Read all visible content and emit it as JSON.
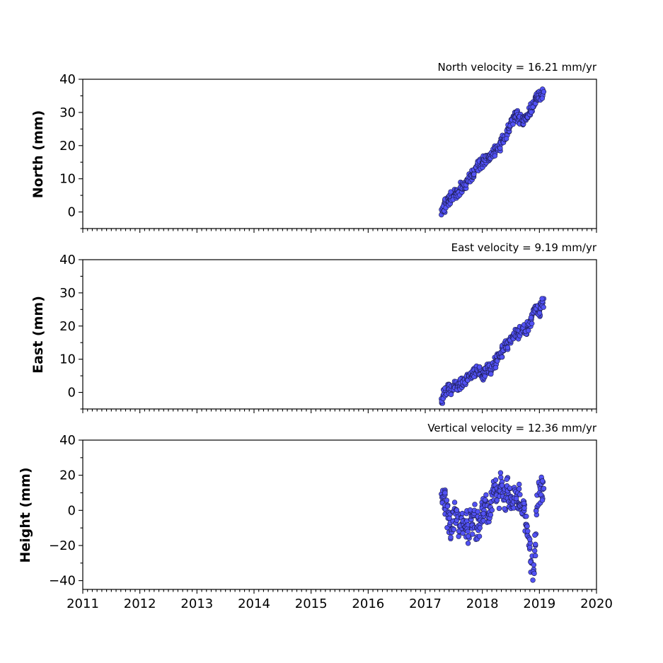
{
  "colors": {
    "marker": "#5252f5",
    "marker_edge": "#1a1a4a",
    "axis": "#000000"
  },
  "chart_data": [
    {
      "type": "scatter",
      "title": "North velocity = 16.21 mm/yr",
      "ylabel": "North (mm)",
      "xlim": [
        2011,
        2020
      ],
      "ylim": [
        -5,
        40
      ],
      "yticks": [
        0,
        10,
        20,
        30,
        40
      ],
      "xtick_labels_shown": false,
      "series": [
        {
          "x": [
            2017.3,
            2017.33,
            2017.36,
            2017.4,
            2017.43,
            2017.46,
            2017.5,
            2017.53,
            2017.56,
            2017.6,
            2017.63,
            2017.66,
            2017.7,
            2017.73,
            2017.76,
            2017.8,
            2017.83,
            2017.86,
            2017.9,
            2017.93,
            2017.96,
            2018.0,
            2018.03,
            2018.06,
            2018.1,
            2018.13,
            2018.16,
            2018.2,
            2018.23,
            2018.26,
            2018.3,
            2018.33,
            2018.36,
            2018.4,
            2018.43,
            2018.46,
            2018.5,
            2018.53,
            2018.56,
            2018.6,
            2018.63,
            2018.66,
            2018.7,
            2018.73,
            2018.76,
            2018.8,
            2018.83,
            2018.86,
            2018.9,
            2018.93,
            2018.96,
            2019.0,
            2019.03,
            2019.06
          ],
          "y": [
            0.0,
            1.5,
            2.5,
            3.0,
            4.0,
            5.0,
            4.5,
            5.5,
            6.0,
            6.5,
            7.5,
            8.0,
            8.5,
            9.5,
            10.0,
            10.5,
            11.0,
            12.0,
            13.0,
            14.0,
            14.5,
            15.0,
            15.5,
            16.0,
            16.5,
            17.0,
            17.5,
            18.0,
            18.5,
            19.0,
            19.5,
            20.5,
            21.5,
            22.5,
            23.5,
            25.0,
            26.5,
            28.0,
            29.0,
            29.5,
            28.5,
            28.0,
            27.5,
            28.0,
            29.0,
            29.5,
            30.0,
            31.0,
            33.0,
            34.0,
            34.5,
            35.0,
            35.0,
            35.5
          ]
        }
      ]
    },
    {
      "type": "scatter",
      "title": "East velocity = 9.19 mm/yr",
      "ylabel": "East (mm)",
      "xlim": [
        2011,
        2020
      ],
      "ylim": [
        -5,
        40
      ],
      "yticks": [
        0,
        10,
        20,
        30,
        40
      ],
      "xtick_labels_shown": false,
      "series": [
        {
          "x": [
            2017.3,
            2017.33,
            2017.36,
            2017.4,
            2017.43,
            2017.46,
            2017.5,
            2017.53,
            2017.56,
            2017.6,
            2017.63,
            2017.66,
            2017.7,
            2017.73,
            2017.76,
            2017.8,
            2017.83,
            2017.86,
            2017.9,
            2017.93,
            2017.96,
            2018.0,
            2018.03,
            2018.06,
            2018.1,
            2018.13,
            2018.16,
            2018.2,
            2018.23,
            2018.26,
            2018.3,
            2018.33,
            2018.36,
            2018.4,
            2018.43,
            2018.46,
            2018.5,
            2018.53,
            2018.56,
            2018.6,
            2018.63,
            2018.66,
            2018.7,
            2018.73,
            2018.76,
            2018.8,
            2018.83,
            2018.86,
            2018.9,
            2018.93,
            2018.96,
            2019.0,
            2019.03,
            2019.06
          ],
          "y": [
            -2.0,
            -0.5,
            0.5,
            1.0,
            1.0,
            0.5,
            1.5,
            2.0,
            1.5,
            2.5,
            3.0,
            3.5,
            3.0,
            4.0,
            4.5,
            5.0,
            5.5,
            6.0,
            6.5,
            6.0,
            6.5,
            5.0,
            5.5,
            6.5,
            7.0,
            7.5,
            6.5,
            8.0,
            9.0,
            10.0,
            10.5,
            12.0,
            13.0,
            14.0,
            13.5,
            15.0,
            15.5,
            16.5,
            17.5,
            18.0,
            17.5,
            18.5,
            19.0,
            19.5,
            18.5,
            20.0,
            20.5,
            22.0,
            24.0,
            26.0,
            25.0,
            24.5,
            26.0,
            27.0
          ]
        }
      ]
    },
    {
      "type": "scatter",
      "title": "Vertical velocity = 12.36 mm/yr",
      "ylabel": "Height (mm)",
      "xlim": [
        2011,
        2020
      ],
      "ylim": [
        -45,
        40
      ],
      "yticks": [
        -40,
        -20,
        0,
        20,
        40
      ],
      "xticks": [
        2011,
        2012,
        2013,
        2014,
        2015,
        2016,
        2017,
        2018,
        2019,
        2020
      ],
      "xtick_labels": [
        "2011",
        "2012",
        "2013",
        "2014",
        "2015",
        "2016",
        "2017",
        "2018",
        "2019",
        "2020"
      ],
      "series": [
        {
          "x": [
            2017.3,
            2017.33,
            2017.36,
            2017.4,
            2017.43,
            2017.46,
            2017.5,
            2017.53,
            2017.56,
            2017.6,
            2017.63,
            2017.66,
            2017.7,
            2017.73,
            2017.76,
            2017.8,
            2017.83,
            2017.86,
            2017.9,
            2017.93,
            2017.96,
            2018.0,
            2018.03,
            2018.06,
            2018.1,
            2018.13,
            2018.16,
            2018.2,
            2018.23,
            2018.26,
            2018.3,
            2018.33,
            2018.36,
            2018.4,
            2018.43,
            2018.46,
            2018.5,
            2018.53,
            2018.56,
            2018.6,
            2018.63,
            2018.66,
            2018.7,
            2018.73,
            2018.76,
            2018.8,
            2018.83,
            2018.86,
            2018.9,
            2018.93,
            2018.96,
            2019.0,
            2019.03,
            2019.06
          ],
          "y": [
            5.0,
            8.0,
            2.0,
            -3.0,
            -8.0,
            -12.0,
            -6.0,
            -2.0,
            -5.0,
            -9.0,
            -4.0,
            -7.0,
            -10.0,
            -6.0,
            -15.0,
            -5.0,
            -8.0,
            -3.0,
            -10.0,
            -5.0,
            -8.0,
            -2.0,
            0.0,
            3.0,
            -4.0,
            2.0,
            5.0,
            10.0,
            14.0,
            12.0,
            8.0,
            15.0,
            10.0,
            6.0,
            13.0,
            5.0,
            8.0,
            2.0,
            7.0,
            10.0,
            4.0,
            9.0,
            -2.0,
            5.0,
            -8.0,
            -15.0,
            -22.0,
            -30.0,
            -35.0,
            -20.0,
            2.0,
            10.0,
            15.0,
            12.0
          ]
        }
      ]
    }
  ]
}
